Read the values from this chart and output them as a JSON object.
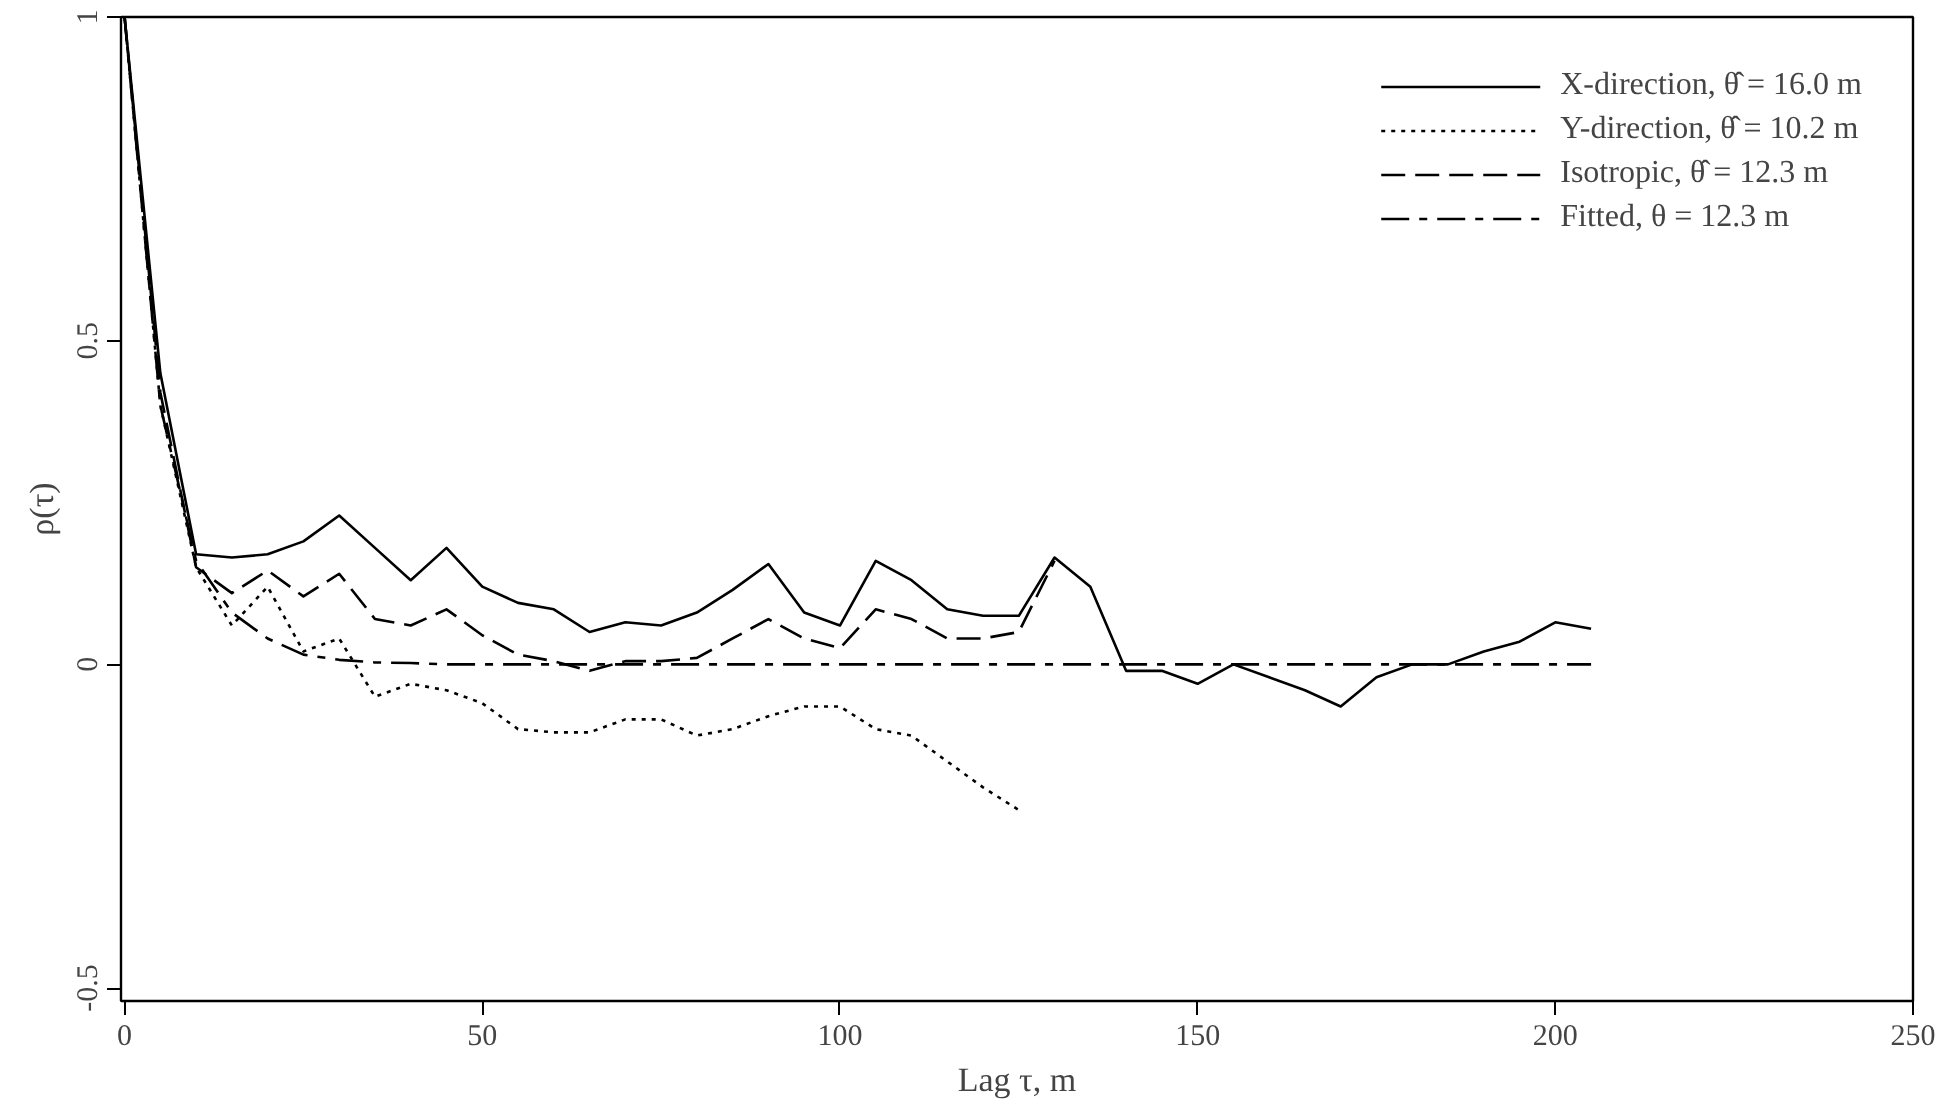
{
  "chart_data": {
    "type": "line",
    "xlabel": "Lag τ, m",
    "ylabel": "ρ(τ)",
    "xlim": [
      -0.5,
      250
    ],
    "ylim": [
      -0.52,
      1
    ],
    "xticks": [
      0,
      50,
      100,
      150,
      200,
      250
    ],
    "yticks": [
      -0.5,
      0,
      0.5,
      1
    ],
    "grid": false,
    "legend": "top right",
    "series": [
      {
        "name": "X-direction, θ̂ = 16.0 m",
        "color": "#000000",
        "line_style": "solid",
        "x": [
          0,
          5,
          10,
          15,
          20,
          25,
          30,
          35,
          40,
          45,
          50,
          55,
          60,
          65,
          70,
          75,
          80,
          85,
          90,
          95,
          100,
          105,
          110,
          115,
          120,
          125,
          130,
          135,
          140,
          145,
          150,
          155,
          160,
          165,
          170,
          175,
          180,
          185,
          190,
          195,
          200,
          205
        ],
        "values": [
          1,
          0.45,
          0.17,
          0.165,
          0.17,
          0.19,
          0.23,
          0.18,
          0.13,
          0.18,
          0.12,
          0.095,
          0.085,
          0.05,
          0.065,
          0.06,
          0.08,
          0.115,
          0.155,
          0.08,
          0.06,
          0.16,
          0.13,
          0.085,
          0.075,
          0.075,
          0.165,
          0.12,
          -0.01,
          -0.01,
          -0.03,
          0,
          -0.02,
          -0.04,
          -0.065,
          -0.02,
          0,
          0,
          0.02,
          0.035,
          0.065,
          0.055
        ]
      },
      {
        "name": "Y-direction, θ̂ = 10.2 m",
        "color": "#000000",
        "line_style": "dotted",
        "x": [
          0,
          5,
          10,
          15,
          20,
          25,
          30,
          35,
          40,
          45,
          50,
          55,
          60,
          65,
          70,
          75,
          80,
          85,
          90,
          95,
          100,
          105,
          110,
          115,
          120,
          125
        ],
        "values": [
          1,
          0.4,
          0.15,
          0.06,
          0.12,
          0.02,
          0.04,
          -0.05,
          -0.03,
          -0.04,
          -0.06,
          -0.1,
          -0.105,
          -0.105,
          -0.085,
          -0.085,
          -0.11,
          -0.1,
          -0.08,
          -0.065,
          -0.065,
          -0.1,
          -0.11,
          -0.15,
          -0.19,
          -0.225
        ]
      },
      {
        "name": "Isotropic, θ̂ = 12.3 m",
        "color": "#000000",
        "line_style": "dashed",
        "x": [
          0,
          5,
          10,
          15,
          20,
          25,
          30,
          35,
          40,
          45,
          50,
          55,
          60,
          65,
          70,
          75,
          80,
          85,
          90,
          95,
          100,
          105,
          110,
          115,
          120,
          125,
          130
        ],
        "values": [
          1,
          0.42,
          0.15,
          0.11,
          0.145,
          0.105,
          0.14,
          0.07,
          0.06,
          0.085,
          0.045,
          0.015,
          0.005,
          -0.01,
          0.005,
          0.005,
          0.01,
          0.04,
          0.07,
          0.04,
          0.025,
          0.085,
          0.07,
          0.04,
          0.04,
          0.05,
          0.16
        ]
      },
      {
        "name": "Fitted, θ = 12.3 m",
        "color": "#000000",
        "line_style": "dashdot",
        "x": [
          0,
          5,
          10,
          15,
          20,
          25,
          30,
          35,
          40,
          45,
          50,
          100,
          150,
          205
        ],
        "values": [
          1,
          0.4,
          0.16,
          0.08,
          0.04,
          0.015,
          0.007,
          0.003,
          0.002,
          0,
          0,
          0,
          0,
          0
        ]
      }
    ]
  }
}
